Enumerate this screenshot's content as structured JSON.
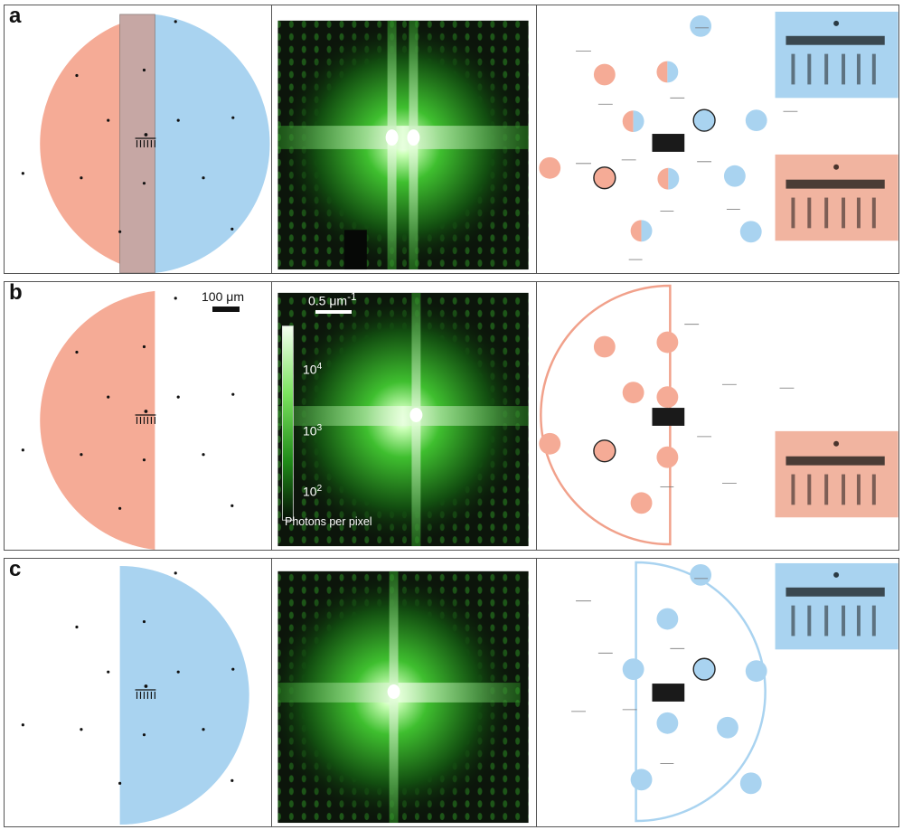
{
  "figure": {
    "panels": [
      {
        "label": "a",
        "mask": "both"
      },
      {
        "label": "b",
        "mask": "left"
      },
      {
        "label": "c",
        "mask": "right"
      }
    ],
    "scale_bar_real": "100 μm",
    "scale_bar_reciprocal": "0.5 μm",
    "scale_bar_reciprocal_exp": "-1",
    "colorbar": {
      "ticks": [
        {
          "base": "10",
          "exp": "4"
        },
        {
          "base": "10",
          "exp": "3"
        },
        {
          "base": "10",
          "exp": "2"
        }
      ],
      "title": "Photons per pixel"
    },
    "colors": {
      "left_mask": "#f2a892",
      "right_mask": "#a6d0ee",
      "overlap": "#c9a4a0",
      "diffraction_green": "#4cd43a"
    }
  }
}
